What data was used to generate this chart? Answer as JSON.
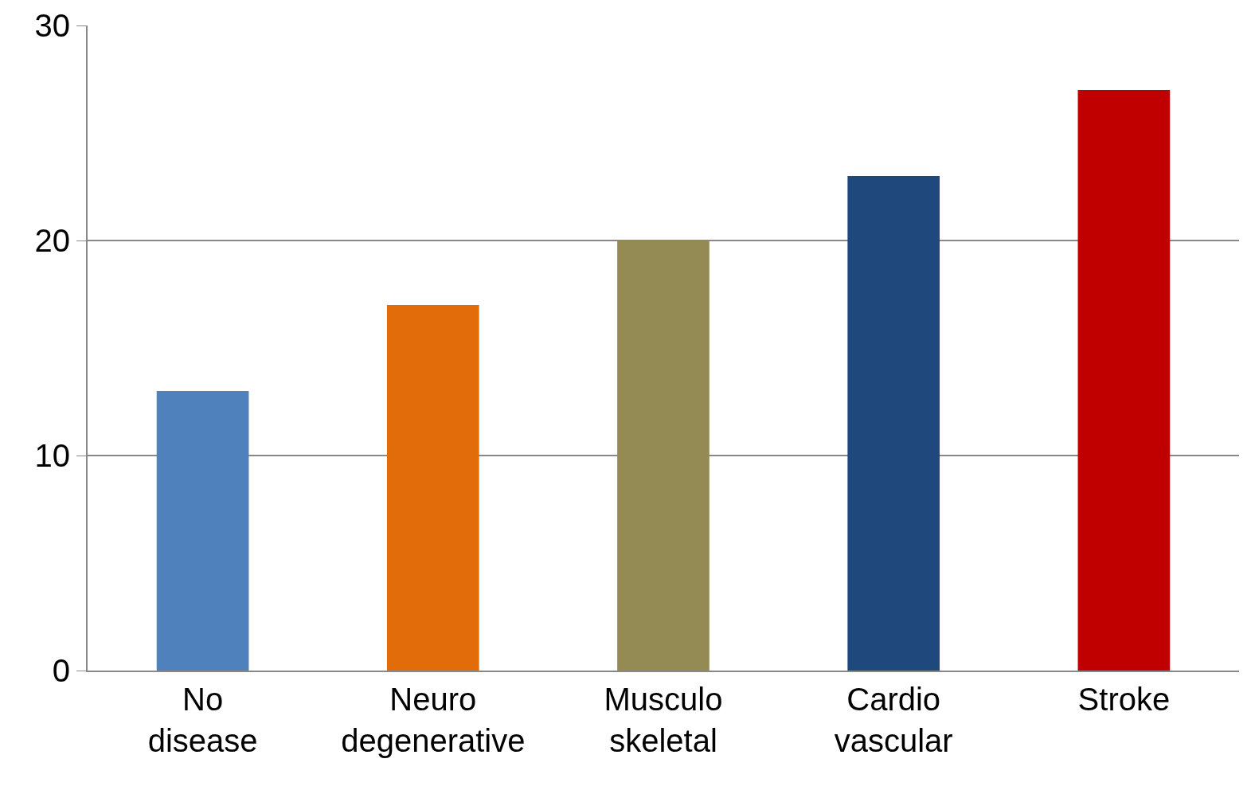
{
  "chart_data": {
    "type": "bar",
    "categories": [
      "No disease",
      "Neuro degenerative",
      "Musculo skeletal",
      "Cardio vascular",
      "Stroke"
    ],
    "values": [
      13,
      17,
      20,
      23,
      27
    ],
    "colors": [
      "#4f81bd",
      "#e36c0a",
      "#948a54",
      "#1f497d",
      "#c00000"
    ],
    "ylim": [
      0,
      30
    ],
    "yticks": [
      0,
      10,
      20,
      30
    ],
    "grid": "y"
  }
}
